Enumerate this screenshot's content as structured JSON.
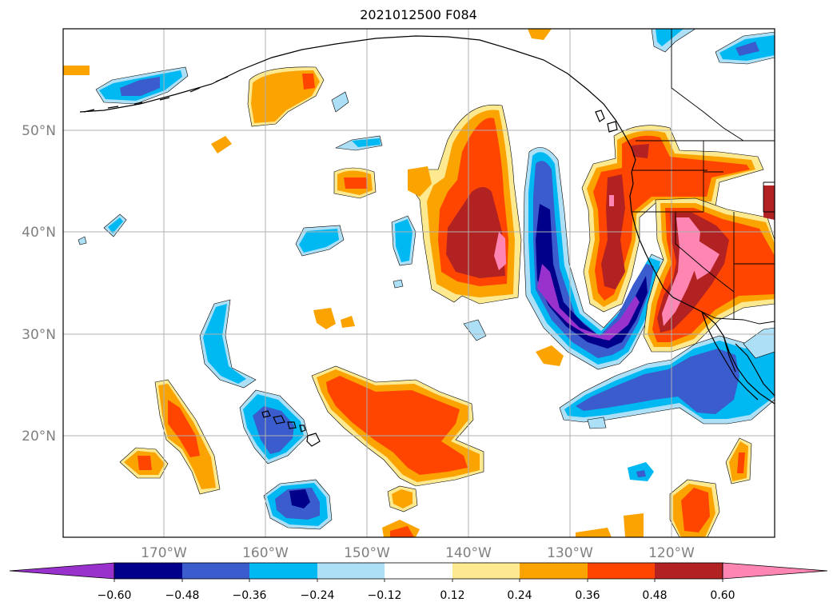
{
  "title": "2021012500 F084",
  "colors": {
    "n72": "#9932cc",
    "n60": "#00008b",
    "n48": "#3a5ccc",
    "n36": "#00b8f2",
    "n24": "#ade0f7",
    "zero": "#ffffff",
    "p12": "#fde98f",
    "p24": "#fba301",
    "p36": "#ff4500",
    "p48": "#b22222",
    "p60": "#ff86b3"
  },
  "chart_data": {
    "type": "heatmap",
    "title": "2021012500 F084",
    "projection": "lat-lon",
    "lon_range": [
      -180,
      -110
    ],
    "lat_range": [
      10,
      60
    ],
    "grid": true,
    "lon_ticks": [
      {
        "lon": -170,
        "label": "170°W"
      },
      {
        "lon": -160,
        "label": "160°W"
      },
      {
        "lon": -150,
        "label": "150°W"
      },
      {
        "lon": -140,
        "label": "140°W"
      },
      {
        "lon": -130,
        "label": "130°W"
      },
      {
        "lon": -120,
        "label": "120°W"
      }
    ],
    "lat_ticks": [
      {
        "lat": 20,
        "label": "20°N"
      },
      {
        "lat": 30,
        "label": "30°N"
      },
      {
        "lat": 40,
        "label": "40°N"
      },
      {
        "lat": 50,
        "label": "50°N"
      }
    ],
    "colorbar": {
      "orientation": "horizontal",
      "extend": "both",
      "levels": [
        -0.72,
        -0.6,
        -0.48,
        -0.36,
        -0.24,
        -0.12,
        0.12,
        0.24,
        0.36,
        0.48,
        0.6,
        0.72
      ],
      "tick_labels": [
        "−0.60",
        "−0.48",
        "−0.36",
        "−0.24",
        "−0.12",
        "0.12",
        "0.24",
        "0.36",
        "0.48",
        "0.60"
      ],
      "colors": [
        "#9932cc",
        "#00008b",
        "#3a5ccc",
        "#00b8f2",
        "#ade0f7",
        "#ffffff",
        "#fde98f",
        "#fba301",
        "#ff4500",
        "#b22222",
        "#ff86b3"
      ]
    },
    "features": [
      {
        "name": "offshore-negative-arc",
        "lon": -128,
        "lat": 36,
        "min_level": -0.72
      },
      {
        "name": "pacific-positive-plume",
        "lon": -140,
        "lat": 42,
        "max_level": 0.6
      },
      {
        "name": "california-positive-core",
        "lon": -120,
        "lat": 33,
        "max_level": 0.6
      },
      {
        "name": "pacific-northwest-positive",
        "lon": -123,
        "lat": 46,
        "max_level": 0.48
      },
      {
        "name": "subtropical-positive-band",
        "lon": -147,
        "lat": 21,
        "max_level": 0.36
      },
      {
        "name": "baja-negative-region",
        "lon": -120,
        "lat": 24,
        "min_level": -0.48
      },
      {
        "name": "hawaii-negative-region",
        "lon": -158,
        "lat": 20,
        "min_level": -0.48
      },
      {
        "name": "gulf-alaska-positive",
        "lon": -157,
        "lat": 54,
        "max_level": 0.24
      }
    ]
  }
}
